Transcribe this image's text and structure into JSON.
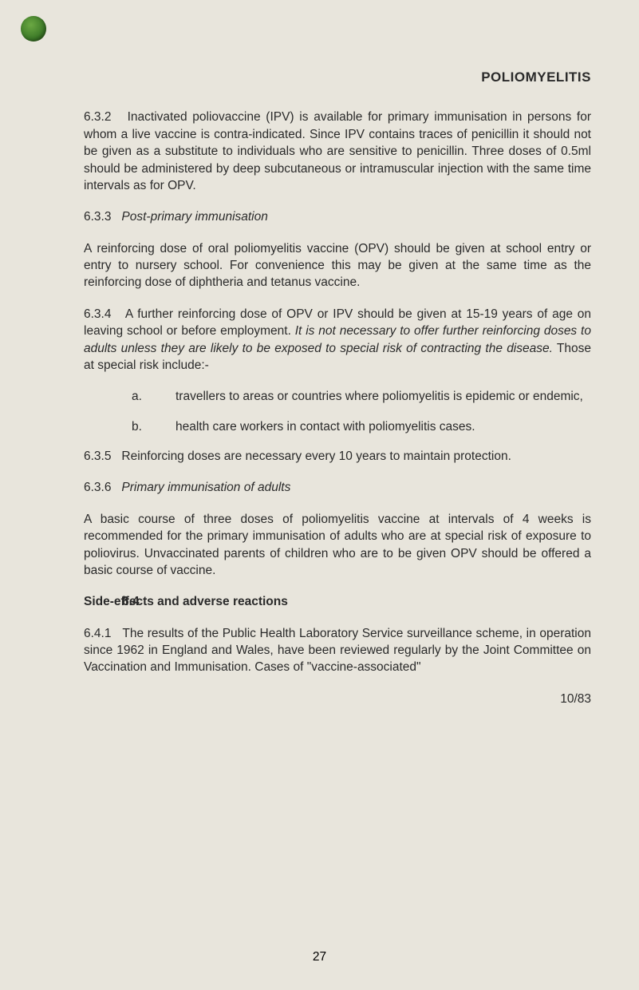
{
  "header": "POLIOMYELITIS",
  "p632_num": "6.3.2",
  "p632_text": "Inactivated poliovaccine (IPV) is available for primary immunisation in persons for whom a live vaccine is contra-indicated. Since IPV contains traces of penicillin it should not be given as a substitute to individuals who are sensitive to penicillin. Three doses of 0.5ml should be administered by deep subcutaneous or intramuscular injection with the same time intervals as for OPV.",
  "p633_num": "6.3.3",
  "p633_title": "Post-primary immunisation",
  "p633_text": "A reinforcing dose of oral poliomyelitis vaccine (OPV) should be given at school entry or entry to nursery school. For convenience this may be given at the same time as the reinforcing dose of diphtheria and tetanus vaccine.",
  "p634_num": "6.3.4",
  "p634_text_a": "A further reinforcing dose of OPV or IPV should be given at 15-19 years of age on leaving school or before employment.",
  "p634_text_italic": "It is not necessary to offer further reinforcing doses to adults unless they are likely to be exposed to special risk of contracting the disease.",
  "p634_text_b": "Those at special risk include:-",
  "sub_a_letter": "a.",
  "sub_a_text": "travellers to areas or countries where poliomyelitis is epidemic or endemic,",
  "sub_b_letter": "b.",
  "sub_b_text": "health care workers in contact with poliomyelitis cases.",
  "p635_num": "6.3.5",
  "p635_text": "Reinforcing doses are necessary every 10 years to maintain protection.",
  "p636_num": "6.3.6",
  "p636_title": "Primary immunisation of adults",
  "p636_text": "A basic course of three doses of poliomyelitis vaccine at intervals of 4 weeks is recommended for the primary immunisation of adults who are at special risk of exposure to poliovirus. Unvaccinated parents of children who are to be given OPV should be offered a basic course of vaccine.",
  "sec64_num": "6.4",
  "sec64_title": "Side-effects and adverse reactions",
  "p641_num": "6.4.1",
  "p641_text": "The results of the Public Health Laboratory Service surveillance scheme, in operation since 1962 in England and Wales, have been reviewed regularly by the Joint Committee on Vaccination and Immunisation. Cases of \"vaccine-associated\"",
  "date_ref": "10/83",
  "page_num": "27"
}
